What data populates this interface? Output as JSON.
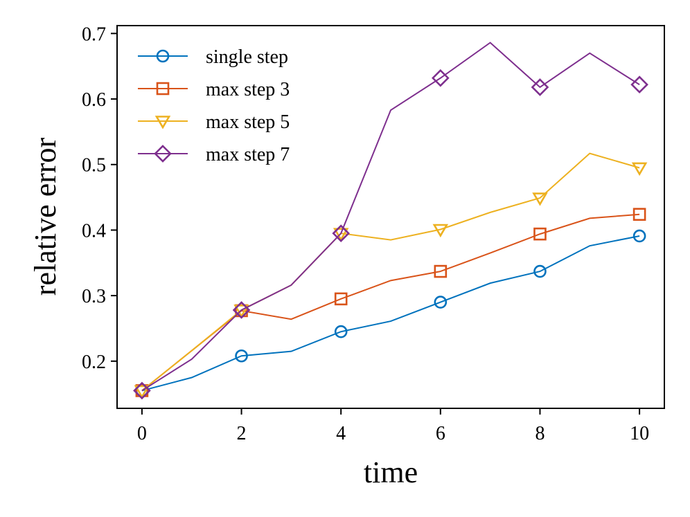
{
  "chart_data": {
    "type": "line",
    "title": "",
    "xlabel": "time",
    "ylabel": "relative error",
    "xlim": [
      -0.5,
      10.5
    ],
    "ylim": [
      0.128,
      0.712
    ],
    "xticks": [
      0,
      2,
      4,
      6,
      8,
      10
    ],
    "xtick_labels": [
      "0",
      "2",
      "4",
      "6",
      "8",
      "10"
    ],
    "yticks": [
      0.2,
      0.3,
      0.4,
      0.5,
      0.6,
      0.7
    ],
    "ytick_labels": [
      "0.2",
      "0.3",
      "0.4",
      "0.5",
      "0.6",
      "0.7"
    ],
    "grid": false,
    "legend_position": "top-left",
    "x": [
      0,
      1,
      2,
      3,
      4,
      5,
      6,
      7,
      8,
      9,
      10
    ],
    "series": [
      {
        "name": "single step",
        "color": "#0072BD",
        "marker": "circle",
        "marker_every": 2,
        "values": [
          0.155,
          0.175,
          0.208,
          0.215,
          0.245,
          0.261,
          0.29,
          0.319,
          0.337,
          0.376,
          0.391
        ]
      },
      {
        "name": "max step 3",
        "color": "#D95319",
        "marker": "square",
        "marker_every": 2,
        "values": [
          0.155,
          0.216,
          0.277,
          0.264,
          0.295,
          0.323,
          0.337,
          0.365,
          0.394,
          0.418,
          0.424
        ]
      },
      {
        "name": "max step 5",
        "color": "#EDB120",
        "marker": "triangle-down",
        "marker_every": 2,
        "values": [
          0.155,
          0.216,
          0.278,
          0.316,
          0.395,
          0.385,
          0.401,
          0.427,
          0.449,
          0.517,
          0.495
        ]
      },
      {
        "name": "max step 7",
        "color": "#7E2F8E",
        "marker": "diamond",
        "marker_every": 2,
        "values": [
          0.155,
          0.203,
          0.278,
          0.316,
          0.395,
          0.583,
          0.632,
          0.686,
          0.618,
          0.67,
          0.622
        ]
      }
    ]
  }
}
